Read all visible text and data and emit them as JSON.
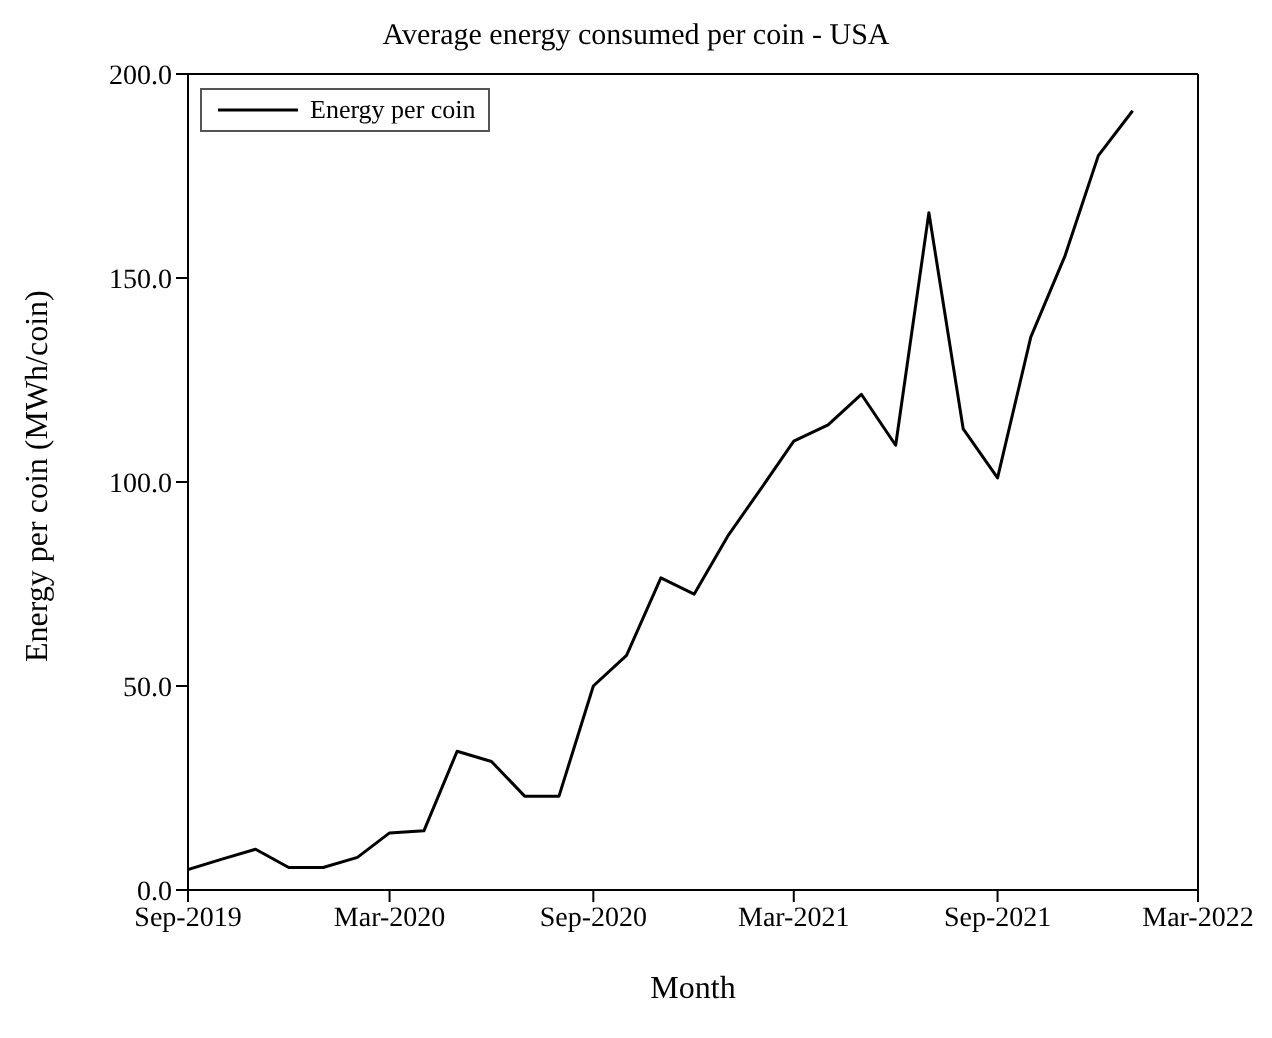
{
  "chart_data": {
    "type": "line",
    "title": "Average energy consumed per coin - USA",
    "xlabel": "Month",
    "ylabel": "Energy per coin (MWh/coin)",
    "x": [
      "2019-09",
      "2019-10",
      "2019-11",
      "2019-12",
      "2020-01",
      "2020-02",
      "2020-03",
      "2020-04",
      "2020-05",
      "2020-06",
      "2020-07",
      "2020-08",
      "2020-09",
      "2020-10",
      "2020-11",
      "2020-12",
      "2021-01",
      "2021-02",
      "2021-03",
      "2021-04",
      "2021-05",
      "2021-06",
      "2021-07",
      "2021-08",
      "2021-09",
      "2021-10",
      "2021-11",
      "2021-12",
      "2022-01"
    ],
    "series": [
      {
        "name": "Energy per coin",
        "color": "#000000",
        "values": [
          5,
          7.5,
          10,
          5.5,
          5.5,
          8,
          14,
          14.5,
          34,
          31.5,
          23,
          23,
          50,
          57.5,
          76.5,
          72.5,
          87,
          99,
          110,
          114,
          121.5,
          109,
          166,
          113,
          101,
          135.5,
          155.5,
          180,
          191
        ]
      }
    ],
    "xlim": [
      "2019-09",
      "2022-03"
    ],
    "xticks": [
      {
        "value": "2019-09",
        "label": "Sep-2019"
      },
      {
        "value": "2020-03",
        "label": "Mar-2020"
      },
      {
        "value": "2020-09",
        "label": "Sep-2020"
      },
      {
        "value": "2021-03",
        "label": "Mar-2021"
      },
      {
        "value": "2021-09",
        "label": "Sep-2021"
      },
      {
        "value": "2022-03",
        "label": "Mar-2022"
      }
    ],
    "ylim": [
      0,
      200
    ],
    "yticks": [
      {
        "value": 0,
        "label": "0.0"
      },
      {
        "value": 50,
        "label": "50.0"
      },
      {
        "value": 100,
        "label": "100.0"
      },
      {
        "value": 150,
        "label": "150.0"
      },
      {
        "value": 200,
        "label": "200.0"
      }
    ],
    "legend": "top left",
    "marker": "none",
    "line_style": "solid"
  }
}
